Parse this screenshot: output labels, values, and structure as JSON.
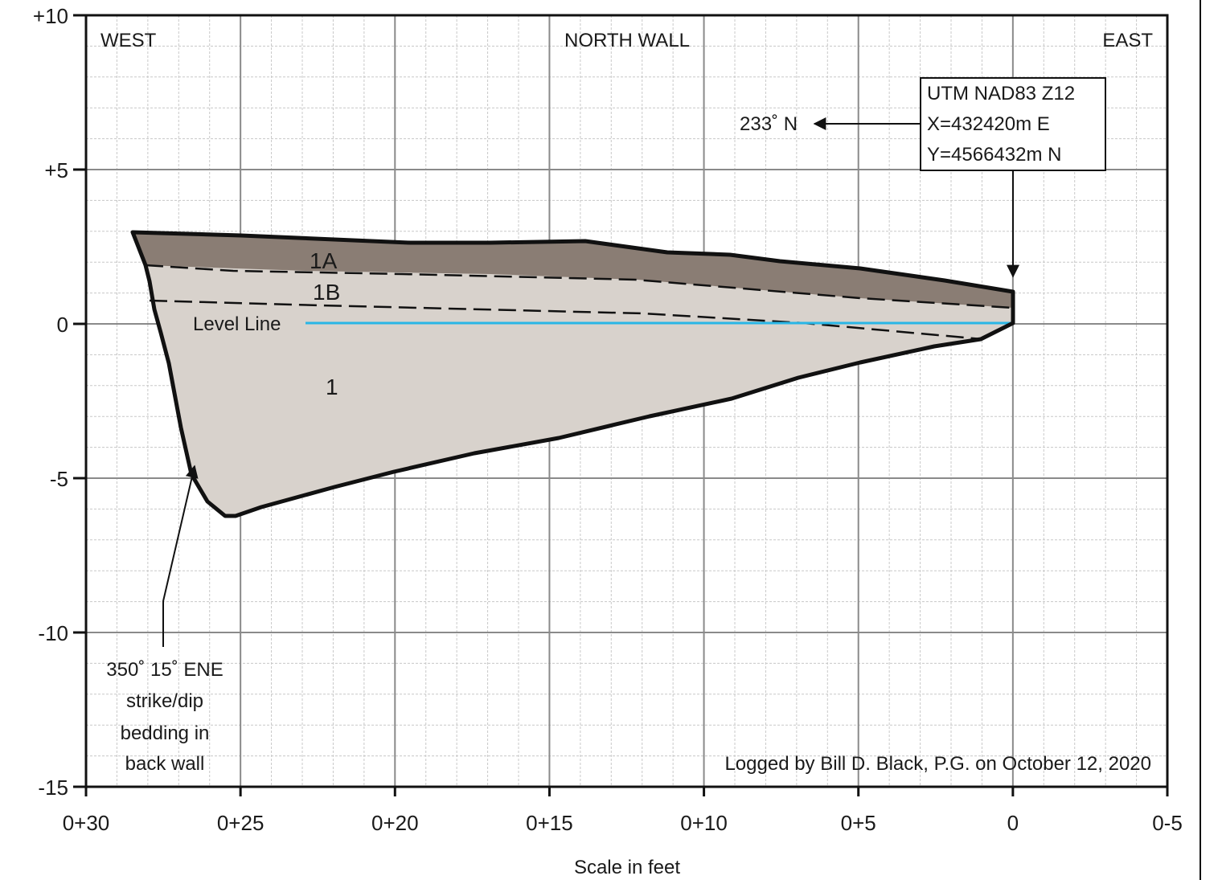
{
  "header": {
    "west": "WEST",
    "title": "NORTH WALL",
    "east": "EAST"
  },
  "axes": {
    "x_label": "Scale in feet",
    "x_ticks": [
      "0+30",
      "0+25",
      "0+20",
      "0+15",
      "0+10",
      "0+5",
      "0",
      "0-5"
    ],
    "y_ticks": [
      "+10",
      "+5",
      "0",
      "-5",
      "-10",
      "-15"
    ]
  },
  "units": {
    "unit_1a": "1A",
    "unit_1b": "1B",
    "unit_1": "1"
  },
  "level_line": {
    "label": "Level Line",
    "color": "#29b6e6"
  },
  "utm_box": {
    "line1": "UTM NAD83 Z12",
    "line2": "X=432420m E",
    "line3": "Y=4566432m N"
  },
  "bearing": {
    "label": "233˚ N"
  },
  "strike_dip": {
    "line1": "350˚ 15˚ ENE",
    "line2": "strike/dip",
    "line3": "bedding in",
    "line4": "back wall"
  },
  "credit": {
    "text": "Logged by Bill D. Black, P.G. on October 12, 2020"
  },
  "colors": {
    "unit_1a_fill": "#8a7d74",
    "unit_1_fill": "#d8d2cc",
    "grid_major": "#8a8a8a",
    "grid_minor": "#c8c8c8"
  }
}
